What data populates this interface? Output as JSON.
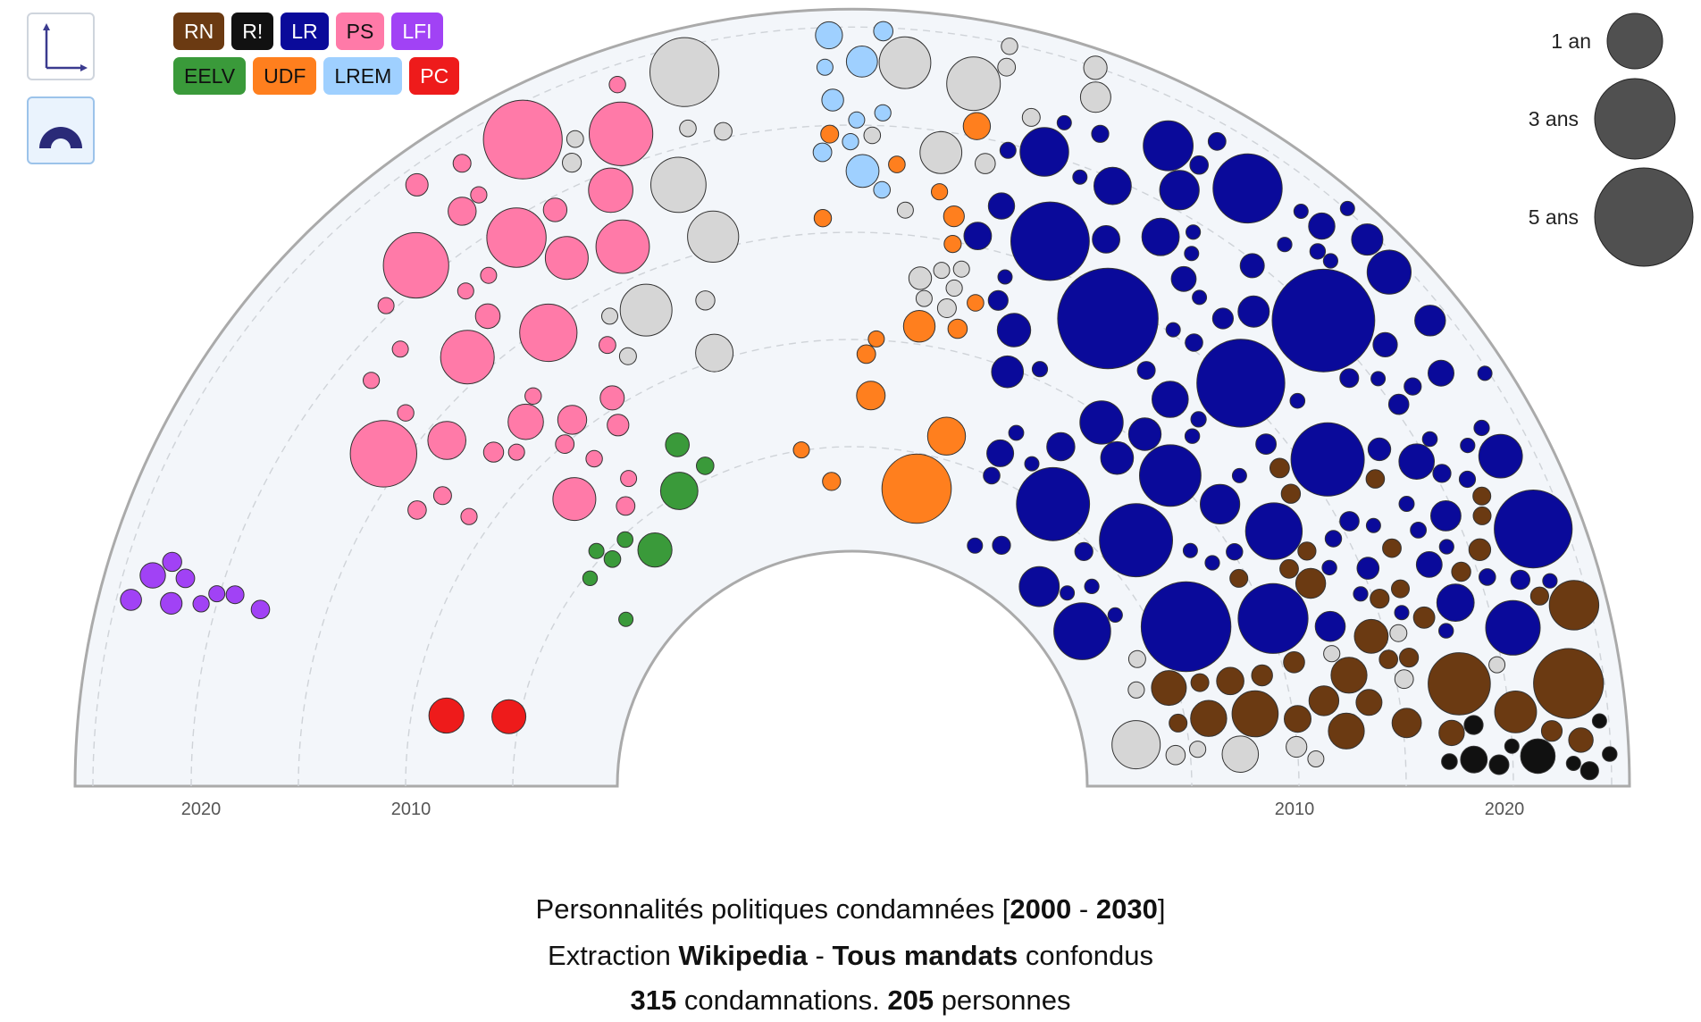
{
  "legend": [
    [
      {
        "label": "RN",
        "color": "#6b3a12",
        "text_color": "#ffffff"
      },
      {
        "label": "R!",
        "color": "#111111",
        "text_color": "#ffffff"
      },
      {
        "label": "LR",
        "color": "#0a0a9a",
        "text_color": "#ffffff"
      },
      {
        "label": "PS",
        "color": "#ff7aa8",
        "text_color": "#111111"
      },
      {
        "label": "LFI",
        "color": "#a142f5",
        "text_color": "#ffffff"
      }
    ],
    [
      {
        "label": "EELV",
        "color": "#3a9a3a",
        "text_color": "#111111"
      },
      {
        "label": "UDF",
        "color": "#ff7f1e",
        "text_color": "#111111"
      },
      {
        "label": "LREM",
        "color": "#9fd0ff",
        "text_color": "#111111"
      },
      {
        "label": "PC",
        "color": "#ee1b1b",
        "text_color": "#ffffff"
      }
    ]
  ],
  "buttons": {
    "axes_icon": "axes-icon",
    "arc_icon": "hemicycle-icon"
  },
  "size_legend": {
    "items": [
      {
        "label": "1 an",
        "years": 1
      },
      {
        "label": "3 ans",
        "years": 3
      },
      {
        "label": "5 ans",
        "years": 5
      }
    ],
    "color": "#505050"
  },
  "caption": {
    "line1": {
      "pre": "Personnalités politiques condamnées [",
      "from": "2000",
      "dash": " - ",
      "to": "2030",
      "post": "]"
    },
    "line2": {
      "pre": "Extraction ",
      "source": "Wikipedia",
      "dash": " - ",
      "scope": "Tous mandats",
      "post": " confondus"
    },
    "line3": {
      "convictions": "315",
      "mid": " condamnations. ",
      "people": "205",
      "post": " personnes"
    }
  },
  "chart_data": {
    "type": "scatter",
    "layout": "hemicycle bubble chart",
    "radial_axis": {
      "label_values": [
        2020,
        2010
      ],
      "tick_labels": [
        "2020",
        "2010",
        "2010",
        "2020"
      ]
    },
    "grid": true,
    "colors": {
      "unknown": "#d6d6d6"
    },
    "series": [
      {
        "name": "LFI",
        "count": 9
      },
      {
        "name": "PC",
        "count": 2
      },
      {
        "name": "PS",
        "count": 40
      },
      {
        "name": "EELV",
        "count": 9
      },
      {
        "name": "LREM",
        "count": 11
      },
      {
        "name": "UDF",
        "count": 17
      },
      {
        "name": "LR",
        "count": 120
      },
      {
        "name": "RN",
        "count": 45
      },
      {
        "name": "R!",
        "count": 12
      }
    ]
  }
}
